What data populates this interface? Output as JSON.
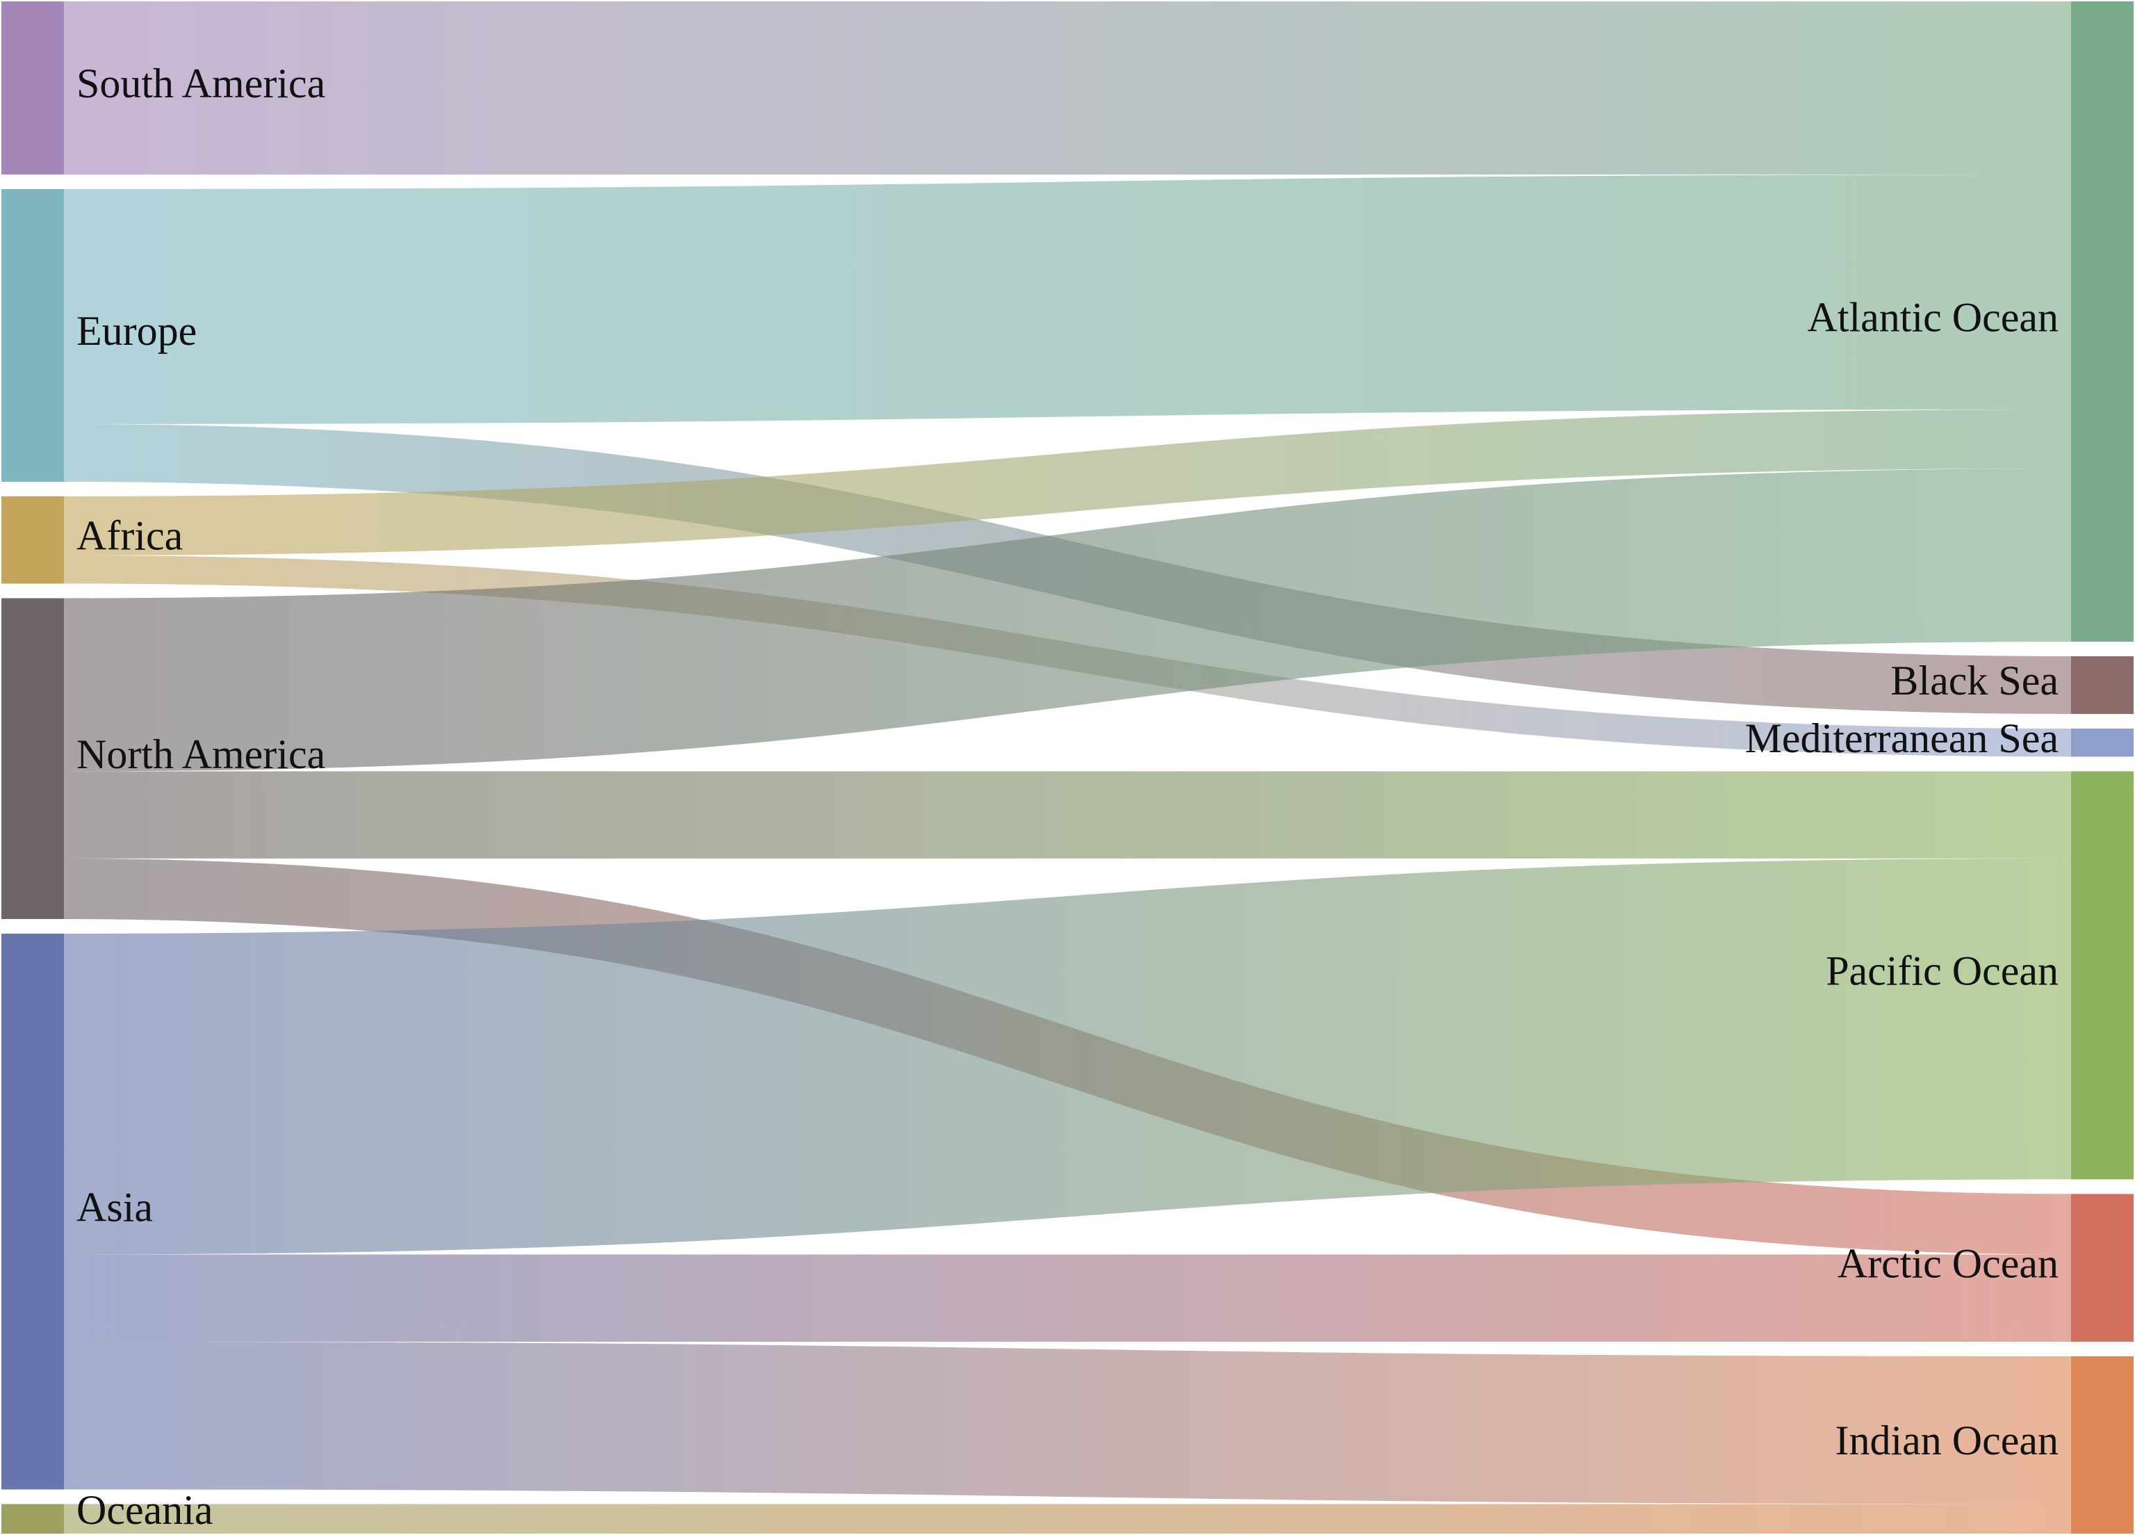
{
  "chart_data": {
    "type": "sankey",
    "sources": [
      {
        "id": "south_america",
        "label": "South America",
        "color": "#a486b8"
      },
      {
        "id": "europe",
        "label": "Europe",
        "color": "#7fb6c2"
      },
      {
        "id": "africa",
        "label": "Africa",
        "color": "#c4a55c"
      },
      {
        "id": "north_america",
        "label": "North America",
        "color": "#6e6567"
      },
      {
        "id": "asia",
        "label": "Asia",
        "color": "#6677ad"
      },
      {
        "id": "oceania",
        "label": "Oceania",
        "color": "#9da05e"
      }
    ],
    "targets": [
      {
        "id": "atlantic",
        "label": "Atlantic Ocean",
        "color": "#7aab8a"
      },
      {
        "id": "black_sea",
        "label": "Black Sea",
        "color": "#8d6a6a"
      },
      {
        "id": "mediterranean",
        "label": "Mediterranean Sea",
        "color": "#8f9fcc"
      },
      {
        "id": "pacific",
        "label": "Pacific Ocean",
        "color": "#8db35f"
      },
      {
        "id": "arctic",
        "label": "Arctic Ocean",
        "color": "#d2705f"
      },
      {
        "id": "indian",
        "label": "Indian Ocean",
        "color": "#dd8656"
      }
    ],
    "flows": [
      {
        "source": "south_america",
        "target": "atlantic",
        "value": 123
      },
      {
        "source": "europe",
        "target": "atlantic",
        "value": 167
      },
      {
        "source": "europe",
        "target": "black_sea",
        "value": 41
      },
      {
        "source": "africa",
        "target": "atlantic",
        "value": 42
      },
      {
        "source": "africa",
        "target": "mediterranean",
        "value": 20
      },
      {
        "source": "north_america",
        "target": "atlantic",
        "value": 123
      },
      {
        "source": "north_america",
        "target": "pacific",
        "value": 62
      },
      {
        "source": "north_america",
        "target": "arctic",
        "value": 43
      },
      {
        "source": "asia",
        "target": "pacific",
        "value": 228
      },
      {
        "source": "asia",
        "target": "arctic",
        "value": 62
      },
      {
        "source": "asia",
        "target": "indian",
        "value": 105
      },
      {
        "source": "oceania",
        "target": "indian",
        "value": 21
      }
    ]
  }
}
